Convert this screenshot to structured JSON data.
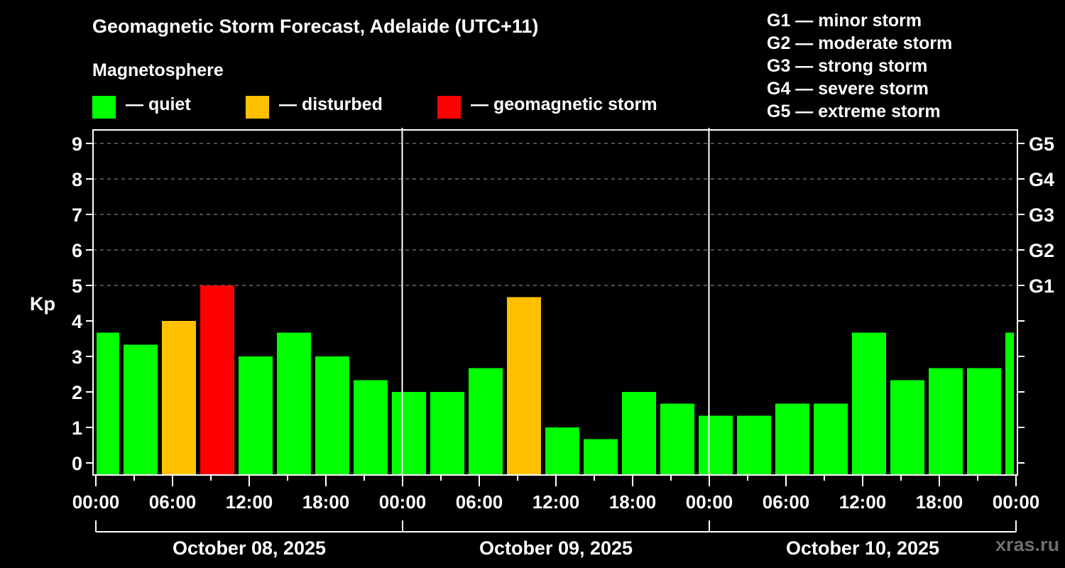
{
  "header": {
    "title": "Geomagnetic Storm Forecast, Adelaide (UTC+11)",
    "subtitle": "Magnetosphere"
  },
  "legend": [
    {
      "label": "— quiet",
      "color": "#00FF00"
    },
    {
      "label": "— disturbed",
      "color": "#FFC000"
    },
    {
      "label": "— geomagnetic storm",
      "color": "#FF0000"
    }
  ],
  "g_scale_legend": [
    "G1 — minor storm",
    "G2 — moderate storm",
    "G3 — strong storm",
    "G4 — severe storm",
    "G5 — extreme storm"
  ],
  "watermark": "xras.ru",
  "chart_data": {
    "type": "bar",
    "title": "Geomagnetic Storm Forecast, Adelaide (UTC+11)",
    "xlabel": "",
    "ylabel": "Kp",
    "ylim": [
      0,
      9
    ],
    "yticks": [
      0,
      1,
      2,
      3,
      4,
      5,
      6,
      7,
      8,
      9
    ],
    "right_axis_labels": [
      {
        "kp": 5,
        "label": "G1"
      },
      {
        "kp": 6,
        "label": "G2"
      },
      {
        "kp": 7,
        "label": "G3"
      },
      {
        "kp": 8,
        "label": "G4"
      },
      {
        "kp": 9,
        "label": "G5"
      }
    ],
    "grid": "dashed horizontal at Kp 5–9",
    "x_tick_labels": [
      "00:00",
      "06:00",
      "12:00",
      "18:00",
      "00:00",
      "06:00",
      "12:00",
      "18:00",
      "00:00",
      "06:00",
      "12:00",
      "18:00",
      "00:00"
    ],
    "dates": [
      "October 08, 2025",
      "October 09, 2025",
      "October 10, 2025"
    ],
    "bar_slot_hours": 3,
    "bar_start_offset_hours": -1,
    "start_hours": [
      -1,
      2,
      5,
      8,
      11,
      14,
      17,
      20,
      23,
      26,
      29,
      32,
      35,
      38,
      41,
      44,
      47,
      50,
      53,
      56,
      59,
      62,
      65,
      68,
      71
    ],
    "values": [
      3.67,
      3.33,
      4.0,
      5.0,
      3.0,
      3.67,
      3.0,
      2.33,
      2.0,
      2.0,
      2.67,
      4.67,
      1.0,
      0.67,
      2.0,
      1.67,
      1.33,
      1.33,
      1.67,
      1.67,
      3.67,
      2.33,
      2.67,
      2.67,
      3.67
    ],
    "status": [
      "quiet",
      "quiet",
      "disturbed",
      "storm",
      "quiet",
      "quiet",
      "quiet",
      "quiet",
      "quiet",
      "quiet",
      "quiet",
      "disturbed",
      "quiet",
      "quiet",
      "quiet",
      "quiet",
      "quiet",
      "quiet",
      "quiet",
      "quiet",
      "quiet",
      "quiet",
      "quiet",
      "quiet",
      "quiet"
    ],
    "colors": {
      "quiet": "#00FF00",
      "disturbed": "#FFC000",
      "storm": "#FF0000"
    }
  }
}
